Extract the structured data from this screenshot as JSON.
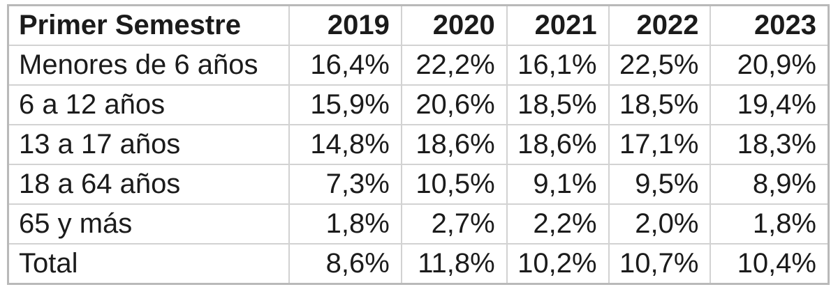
{
  "chart_data": {
    "type": "table",
    "title": "Primer Semestre",
    "columns": [
      "Primer Semestre",
      "2019",
      "2020",
      "2021",
      "2022",
      "2023"
    ],
    "row_labels": [
      "Menores de 6 años",
      "6 a 12 años",
      "13 a 17 años",
      "18 a 64 años",
      "65 y más",
      "Total"
    ],
    "unit": "%",
    "decimal_separator": ",",
    "series": [
      {
        "name": "Menores de 6 años",
        "values": [
          16.4,
          22.2,
          16.1,
          22.5,
          20.9
        ]
      },
      {
        "name": "6 a 12 años",
        "values": [
          15.9,
          20.6,
          18.5,
          18.5,
          19.4
        ]
      },
      {
        "name": "13 a 17 años",
        "values": [
          14.8,
          18.6,
          18.6,
          17.1,
          18.3
        ]
      },
      {
        "name": "18 a 64 años",
        "values": [
          7.3,
          10.5,
          9.1,
          9.5,
          8.9
        ]
      },
      {
        "name": "65 y más",
        "values": [
          1.8,
          2.7,
          2.2,
          2.0,
          1.8
        ]
      },
      {
        "name": "Total",
        "values": [
          8.6,
          11.8,
          10.2,
          10.7,
          10.4
        ]
      }
    ]
  },
  "table": {
    "header": [
      "Primer Semestre",
      "2019",
      "2020",
      "2021",
      "2022",
      "2023"
    ],
    "rows": [
      [
        "Menores de 6 años",
        "16,4%",
        "22,2%",
        "16,1%",
        "22,5%",
        "20,9%"
      ],
      [
        "6 a 12 años",
        "15,9%",
        "20,6%",
        "18,5%",
        "18,5%",
        "19,4%"
      ],
      [
        "13 a 17 años",
        "14,8%",
        "18,6%",
        "18,6%",
        "17,1%",
        "18,3%"
      ],
      [
        "18 a 64 años",
        "7,3%",
        "10,5%",
        "9,1%",
        "9,5%",
        "8,9%"
      ],
      [
        "65 y más",
        "1,8%",
        "2,7%",
        "2,2%",
        "2,0%",
        "1,8%"
      ],
      [
        "Total",
        "8,6%",
        "11,8%",
        "10,2%",
        "10,7%",
        "10,4%"
      ]
    ]
  },
  "colors": {
    "background": "#ffffff",
    "text": "#1b1b1b",
    "grid_line": "#d2d2d2",
    "outer_border": "#b9b9b9"
  }
}
